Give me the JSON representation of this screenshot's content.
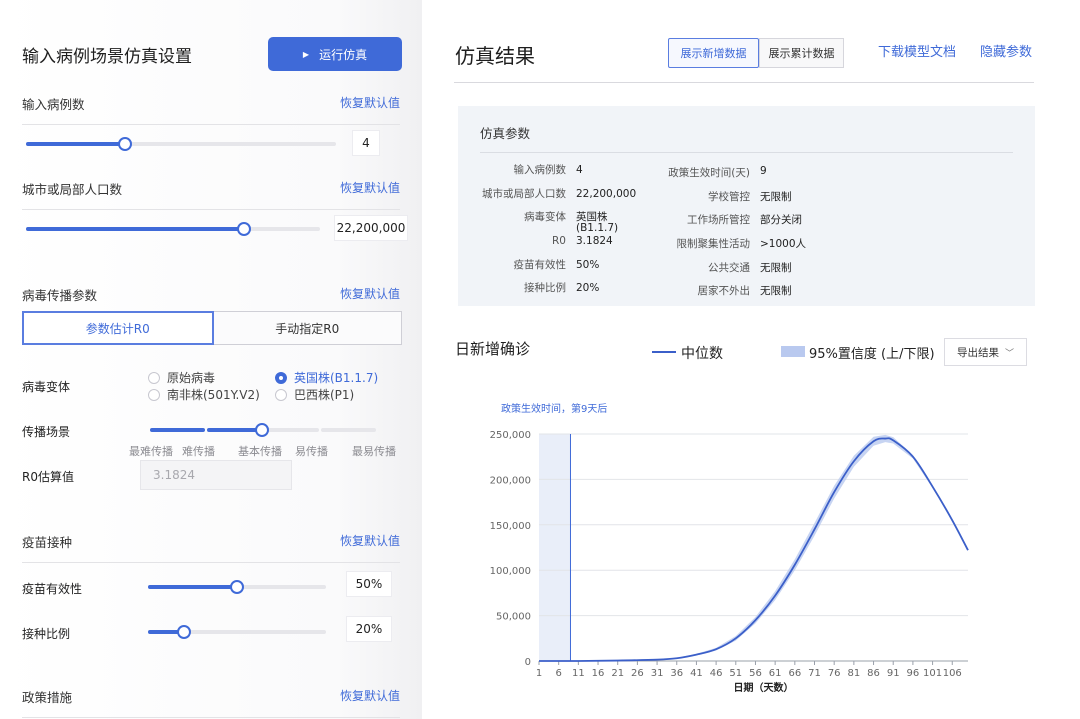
{
  "left": {
    "title": "输入病例场景仿真设置",
    "run_button": "运行仿真",
    "cases": {
      "label": "输入病例数",
      "reset": "恢复默认值",
      "value": "4",
      "level": 0.32
    },
    "population": {
      "label": "城市或局部人口数",
      "reset": "恢复默认值",
      "value": "22,200,000",
      "level": 0.74
    },
    "virus_params": {
      "label": "病毒传播参数",
      "reset": "恢复默认值"
    },
    "tabs": [
      {
        "label": "参数估计R0"
      },
      {
        "label": "手动指定R0"
      }
    ],
    "variant": {
      "label": "病毒变体",
      "options": [
        "原始病毒",
        "英国株(B1.1.7)",
        "南非株(501Y.V2)",
        "巴西株(P1)"
      ],
      "selected": "英国株(B1.1.7)"
    },
    "scenario": {
      "label": "传播场景",
      "ticks": [
        "最难传播",
        "难传播",
        "基本传播",
        "易传播",
        "最易传播"
      ],
      "selected": "基本传播"
    },
    "r0": {
      "label": "R0估算值",
      "placeholder": "3.1824"
    },
    "vaccine": {
      "label": "疫苗接种",
      "reset": "恢复默认值"
    },
    "efficacy": {
      "label": "疫苗有效性",
      "value": "50%",
      "level": 0.5
    },
    "coverage": {
      "label": "接种比例",
      "value": "20%",
      "level": 0.2
    },
    "policy": {
      "label": "政策措施",
      "reset": "恢复默认值"
    }
  },
  "right": {
    "title": "仿真结果",
    "toggle_new": "展示新增数据",
    "toggle_cum": "展示累计数据",
    "download": "下载模型文档",
    "hide": "隐藏参数",
    "params": {
      "title": "仿真参数",
      "rows": [
        {
          "k1": "输入病例数",
          "v1": "4",
          "k2": "政策生效时间(天)",
          "v2": "9"
        },
        {
          "k1": "城市或局部人口数",
          "v1": "22,200,000",
          "k2": "学校管控",
          "v2": "无限制"
        },
        {
          "k1": "病毒变体",
          "v1": "英国株 (B1.1.7)",
          "k2": "工作场所管控",
          "v2": "部分关闭"
        },
        {
          "k1": "R0",
          "v1": "3.1824",
          "k2": "限制聚集性活动",
          "v2": ">1000人"
        },
        {
          "k1": "疫苗有效性",
          "v1": "50%",
          "k2": "公共交通",
          "v2": "无限制"
        },
        {
          "k1": "接种比例",
          "v1": "20%",
          "k2": "居家不外出",
          "v2": "无限制"
        }
      ]
    },
    "chart_title": "日新增确诊",
    "legend_median": "中位数",
    "legend_band": "95%置信度 (上/下限)",
    "export": "导出结果",
    "annotation": "政策生效时间，第9天后"
  },
  "chart_data": {
    "type": "line",
    "title": "日新增确诊",
    "xlabel": "日期（天数）",
    "ylabel": "",
    "xlim": [
      1,
      110
    ],
    "ylim": [
      0,
      250000
    ],
    "x_ticks": [
      1,
      6,
      11,
      16,
      21,
      26,
      31,
      36,
      41,
      46,
      51,
      56,
      61,
      66,
      71,
      76,
      81,
      86,
      91,
      96,
      101,
      106
    ],
    "y_ticks": [
      0,
      50000,
      100000,
      150000,
      200000,
      250000
    ],
    "y_tick_labels": [
      "0",
      "50,000",
      "100,000",
      "150,000",
      "200,000",
      "250,000"
    ],
    "policy_day": 9,
    "series": [
      {
        "name": "中位数",
        "color": "#3b5fc9",
        "x": [
          1,
          11,
          21,
          31,
          36,
          41,
          46,
          51,
          56,
          61,
          66,
          71,
          76,
          81,
          86,
          89,
          91,
          96,
          101,
          106,
          110
        ],
        "values": [
          0,
          0,
          500,
          1500,
          3000,
          7000,
          13000,
          25000,
          45000,
          72000,
          106000,
          145000,
          186000,
          220000,
          242000,
          245000,
          243000,
          225000,
          192000,
          155000,
          122000
        ]
      },
      {
        "name": "95%置信度 (上/下限)",
        "color": "#b9c9ef",
        "x": [
          1,
          11,
          21,
          31,
          36,
          41,
          46,
          51,
          56,
          61,
          66,
          71,
          76,
          81,
          86,
          89,
          91,
          96,
          101,
          106,
          110
        ],
        "upper": [
          0,
          0,
          600,
          1800,
          3500,
          8000,
          14500,
          27500,
          48500,
          77000,
          112000,
          152000,
          193000,
          226000,
          247000,
          249000,
          246500,
          227000,
          193500,
          156000,
          122500
        ],
        "lower": [
          0,
          0,
          400,
          1200,
          2500,
          6000,
          11500,
          22500,
          41500,
          67000,
          100000,
          138000,
          179000,
          214000,
          237000,
          241000,
          239500,
          223000,
          190500,
          154000,
          121500
        ]
      }
    ]
  }
}
